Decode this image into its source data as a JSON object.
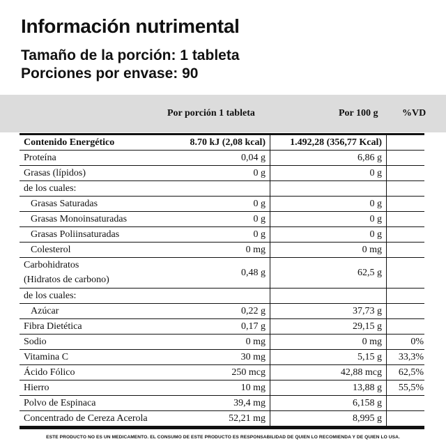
{
  "title": "Información nutrimental",
  "serving_size": "Tamaño de la porción: 1 tableta",
  "servings_per_container": "Porciones por envase: 90",
  "columns": {
    "per_serving": "Por porción 1 tableta",
    "per_100g": "Por 100 g",
    "dv": "%VD"
  },
  "rows": [
    {
      "name": "Contenido Energético",
      "per_serving": "8.70 kJ (2,08 kcal)",
      "per_100g": "1.492,28 (356,77 Kcal)",
      "dv": "",
      "indent": false,
      "bold": true
    },
    {
      "name": "Proteína",
      "per_serving": "0,04 g",
      "per_100g": "6,86 g",
      "dv": "",
      "indent": false
    },
    {
      "name": "Grasas (lípidos)",
      "per_serving": "0 g",
      "per_100g": "0 g",
      "dv": "",
      "indent": false
    },
    {
      "name": "de los cuales:",
      "per_serving": "",
      "per_100g": "",
      "dv": "",
      "indent": false
    },
    {
      "name": "Grasas Saturadas",
      "per_serving": "0 g",
      "per_100g": "0 g",
      "dv": "",
      "indent": true
    },
    {
      "name": "Grasas Monoinsaturadas",
      "per_serving": "0 g",
      "per_100g": "0 g",
      "dv": "",
      "indent": true
    },
    {
      "name": "Grasas Poliinsaturadas",
      "per_serving": "0 g",
      "per_100g": "0 g",
      "dv": "",
      "indent": true
    },
    {
      "name": "Colesterol",
      "per_serving": "0 mg",
      "per_100g": "0 mg",
      "dv": "",
      "indent": true
    },
    {
      "name": "Carbohidratos",
      "name2": "(Hidratos de carbono)",
      "per_serving": "0,48 g",
      "per_100g": "62,5 g",
      "dv": "",
      "indent": false,
      "tall": true
    },
    {
      "name": "de los cuales:",
      "per_serving": "",
      "per_100g": "",
      "dv": "",
      "indent": false
    },
    {
      "name": "Azúcar",
      "per_serving": "0,22 g",
      "per_100g": "37,73 g",
      "dv": "",
      "indent": true
    },
    {
      "name": "Fibra Dietética",
      "per_serving": "0,17 g",
      "per_100g": "29,15 g",
      "dv": "",
      "indent": false
    },
    {
      "name": "Sodio",
      "per_serving": "0 mg",
      "per_100g": "0 mg",
      "dv": "0%",
      "indent": false
    },
    {
      "name": "Vitamina C",
      "per_serving": "30 mg",
      "per_100g": "5,15 g",
      "dv": "33,3%",
      "indent": false
    },
    {
      "name": "Ácido Fólico",
      "per_serving": "250 mcg",
      "per_100g": "42,88 mcg",
      "dv": "62,5%",
      "indent": false
    },
    {
      "name": "Hierro",
      "per_serving": "10 mg",
      "per_100g": "13,88 g",
      "dv": "55,5%",
      "indent": false
    },
    {
      "name": "Polvo de Espinaca",
      "per_serving": "39,4 mg",
      "per_100g": "6,158 g",
      "dv": "",
      "indent": false
    },
    {
      "name": "Concentrado de Cereza Acerola",
      "per_serving": "52,21 mg",
      "per_100g": "8,995 g",
      "dv": "",
      "indent": false
    }
  ],
  "footnote": "ESTE PRODUCTO NO ES UN MEDICAMENTO. EL CONSUMO DE ESTE PRODUCTO ES RESPONSABILIDAD DE QUIEN LO RECOMIENDA Y DE QUIEN LO USA."
}
